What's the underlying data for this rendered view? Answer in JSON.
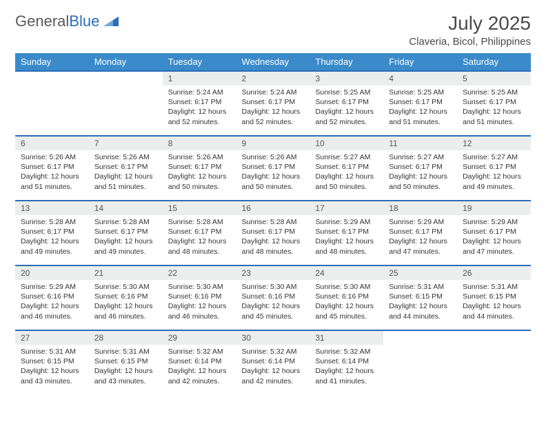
{
  "logo": {
    "part1": "General",
    "part2": "Blue"
  },
  "title": "July 2025",
  "location": "Claveria, Bicol, Philippines",
  "colors": {
    "header_bg": "#3b8bcb",
    "border": "#2a6db8",
    "daynum_bg": "#eceded",
    "text": "#333333",
    "logo_gray": "#5a5a5a",
    "logo_blue": "#2a6db8"
  },
  "weekdays": [
    "Sunday",
    "Monday",
    "Tuesday",
    "Wednesday",
    "Thursday",
    "Friday",
    "Saturday"
  ],
  "weeks": [
    [
      {
        "n": "",
        "sunrise": "",
        "sunset": "",
        "daylight": ""
      },
      {
        "n": "",
        "sunrise": "",
        "sunset": "",
        "daylight": ""
      },
      {
        "n": "1",
        "sunrise": "Sunrise: 5:24 AM",
        "sunset": "Sunset: 6:17 PM",
        "daylight": "Daylight: 12 hours and 52 minutes."
      },
      {
        "n": "2",
        "sunrise": "Sunrise: 5:24 AM",
        "sunset": "Sunset: 6:17 PM",
        "daylight": "Daylight: 12 hours and 52 minutes."
      },
      {
        "n": "3",
        "sunrise": "Sunrise: 5:25 AM",
        "sunset": "Sunset: 6:17 PM",
        "daylight": "Daylight: 12 hours and 52 minutes."
      },
      {
        "n": "4",
        "sunrise": "Sunrise: 5:25 AM",
        "sunset": "Sunset: 6:17 PM",
        "daylight": "Daylight: 12 hours and 51 minutes."
      },
      {
        "n": "5",
        "sunrise": "Sunrise: 5:25 AM",
        "sunset": "Sunset: 6:17 PM",
        "daylight": "Daylight: 12 hours and 51 minutes."
      }
    ],
    [
      {
        "n": "6",
        "sunrise": "Sunrise: 5:26 AM",
        "sunset": "Sunset: 6:17 PM",
        "daylight": "Daylight: 12 hours and 51 minutes."
      },
      {
        "n": "7",
        "sunrise": "Sunrise: 5:26 AM",
        "sunset": "Sunset: 6:17 PM",
        "daylight": "Daylight: 12 hours and 51 minutes."
      },
      {
        "n": "8",
        "sunrise": "Sunrise: 5:26 AM",
        "sunset": "Sunset: 6:17 PM",
        "daylight": "Daylight: 12 hours and 50 minutes."
      },
      {
        "n": "9",
        "sunrise": "Sunrise: 5:26 AM",
        "sunset": "Sunset: 6:17 PM",
        "daylight": "Daylight: 12 hours and 50 minutes."
      },
      {
        "n": "10",
        "sunrise": "Sunrise: 5:27 AM",
        "sunset": "Sunset: 6:17 PM",
        "daylight": "Daylight: 12 hours and 50 minutes."
      },
      {
        "n": "11",
        "sunrise": "Sunrise: 5:27 AM",
        "sunset": "Sunset: 6:17 PM",
        "daylight": "Daylight: 12 hours and 50 minutes."
      },
      {
        "n": "12",
        "sunrise": "Sunrise: 5:27 AM",
        "sunset": "Sunset: 6:17 PM",
        "daylight": "Daylight: 12 hours and 49 minutes."
      }
    ],
    [
      {
        "n": "13",
        "sunrise": "Sunrise: 5:28 AM",
        "sunset": "Sunset: 6:17 PM",
        "daylight": "Daylight: 12 hours and 49 minutes."
      },
      {
        "n": "14",
        "sunrise": "Sunrise: 5:28 AM",
        "sunset": "Sunset: 6:17 PM",
        "daylight": "Daylight: 12 hours and 49 minutes."
      },
      {
        "n": "15",
        "sunrise": "Sunrise: 5:28 AM",
        "sunset": "Sunset: 6:17 PM",
        "daylight": "Daylight: 12 hours and 48 minutes."
      },
      {
        "n": "16",
        "sunrise": "Sunrise: 5:28 AM",
        "sunset": "Sunset: 6:17 PM",
        "daylight": "Daylight: 12 hours and 48 minutes."
      },
      {
        "n": "17",
        "sunrise": "Sunrise: 5:29 AM",
        "sunset": "Sunset: 6:17 PM",
        "daylight": "Daylight: 12 hours and 48 minutes."
      },
      {
        "n": "18",
        "sunrise": "Sunrise: 5:29 AM",
        "sunset": "Sunset: 6:17 PM",
        "daylight": "Daylight: 12 hours and 47 minutes."
      },
      {
        "n": "19",
        "sunrise": "Sunrise: 5:29 AM",
        "sunset": "Sunset: 6:17 PM",
        "daylight": "Daylight: 12 hours and 47 minutes."
      }
    ],
    [
      {
        "n": "20",
        "sunrise": "Sunrise: 5:29 AM",
        "sunset": "Sunset: 6:16 PM",
        "daylight": "Daylight: 12 hours and 46 minutes."
      },
      {
        "n": "21",
        "sunrise": "Sunrise: 5:30 AM",
        "sunset": "Sunset: 6:16 PM",
        "daylight": "Daylight: 12 hours and 46 minutes."
      },
      {
        "n": "22",
        "sunrise": "Sunrise: 5:30 AM",
        "sunset": "Sunset: 6:16 PM",
        "daylight": "Daylight: 12 hours and 46 minutes."
      },
      {
        "n": "23",
        "sunrise": "Sunrise: 5:30 AM",
        "sunset": "Sunset: 6:16 PM",
        "daylight": "Daylight: 12 hours and 45 minutes."
      },
      {
        "n": "24",
        "sunrise": "Sunrise: 5:30 AM",
        "sunset": "Sunset: 6:16 PM",
        "daylight": "Daylight: 12 hours and 45 minutes."
      },
      {
        "n": "25",
        "sunrise": "Sunrise: 5:31 AM",
        "sunset": "Sunset: 6:15 PM",
        "daylight": "Daylight: 12 hours and 44 minutes."
      },
      {
        "n": "26",
        "sunrise": "Sunrise: 5:31 AM",
        "sunset": "Sunset: 6:15 PM",
        "daylight": "Daylight: 12 hours and 44 minutes."
      }
    ],
    [
      {
        "n": "27",
        "sunrise": "Sunrise: 5:31 AM",
        "sunset": "Sunset: 6:15 PM",
        "daylight": "Daylight: 12 hours and 43 minutes."
      },
      {
        "n": "28",
        "sunrise": "Sunrise: 5:31 AM",
        "sunset": "Sunset: 6:15 PM",
        "daylight": "Daylight: 12 hours and 43 minutes."
      },
      {
        "n": "29",
        "sunrise": "Sunrise: 5:32 AM",
        "sunset": "Sunset: 6:14 PM",
        "daylight": "Daylight: 12 hours and 42 minutes."
      },
      {
        "n": "30",
        "sunrise": "Sunrise: 5:32 AM",
        "sunset": "Sunset: 6:14 PM",
        "daylight": "Daylight: 12 hours and 42 minutes."
      },
      {
        "n": "31",
        "sunrise": "Sunrise: 5:32 AM",
        "sunset": "Sunset: 6:14 PM",
        "daylight": "Daylight: 12 hours and 41 minutes."
      },
      {
        "n": "",
        "sunrise": "",
        "sunset": "",
        "daylight": ""
      },
      {
        "n": "",
        "sunrise": "",
        "sunset": "",
        "daylight": ""
      }
    ]
  ]
}
